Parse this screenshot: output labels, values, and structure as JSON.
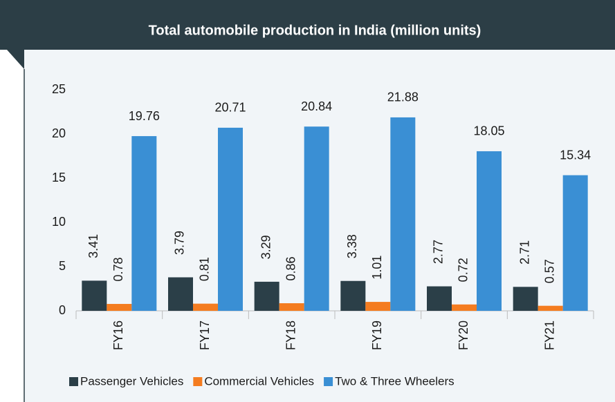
{
  "chart_data": {
    "type": "bar",
    "title": "Total automobile production in India (million units)",
    "categories": [
      "FY16",
      "FY17",
      "FY18",
      "FY19",
      "FY20",
      "FY21"
    ],
    "series": [
      {
        "name": "Passenger Vehicles",
        "color": "#2b3f48",
        "values": [
          3.41,
          3.79,
          3.29,
          3.38,
          2.77,
          2.71
        ]
      },
      {
        "name": "Commercial Vehicles",
        "color": "#f47c20",
        "values": [
          0.78,
          0.81,
          0.86,
          1.01,
          0.72,
          0.57
        ]
      },
      {
        "name": "Two & Three Wheelers",
        "color": "#3a8fd4",
        "values": [
          19.76,
          20.71,
          20.84,
          21.88,
          18.05,
          15.34
        ]
      }
    ],
    "ylim": [
      0,
      25
    ],
    "yticks": [
      0,
      5,
      10,
      15,
      20,
      25
    ],
    "grid": false,
    "legend": "bottom"
  }
}
